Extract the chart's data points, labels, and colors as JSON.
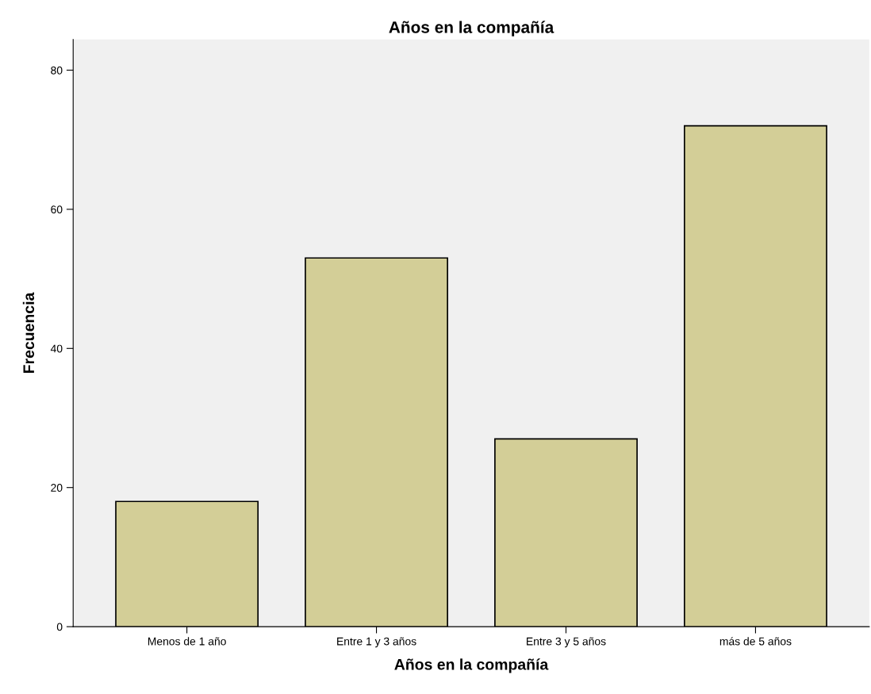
{
  "chart_data": {
    "type": "bar",
    "title": "Años en la compañía",
    "xlabel": "Años en la compañía",
    "ylabel": "Frecuencia",
    "categories": [
      "Menos de 1 año",
      "Entre 1 y 3 años",
      "Entre 3 y 5 años",
      "más de 5 años"
    ],
    "values": [
      18,
      53,
      27,
      72
    ],
    "color": "#d3ce97",
    "ylim": [
      0,
      84.4
    ],
    "yticks": [
      0,
      20,
      40,
      60,
      80
    ],
    "grid": false,
    "legend": false
  }
}
